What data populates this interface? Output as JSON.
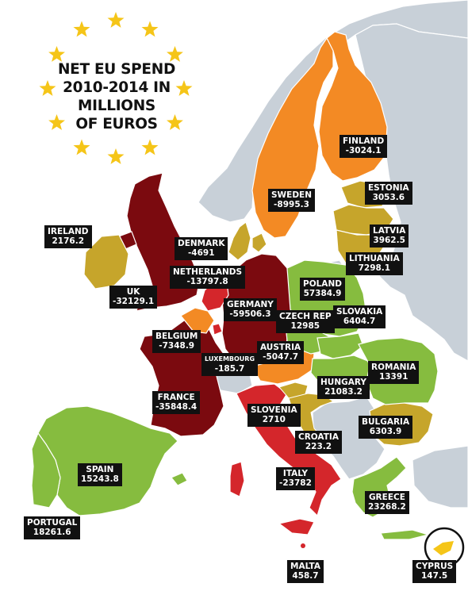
{
  "title_lines": [
    "NET EU SPEND",
    "2010-2014 IN",
    "MILLIONS",
    "OF EUROS"
  ],
  "colors": {
    "sea": "#ffffff",
    "non_eu": "#c8d0d8",
    "dark_red": "#7b0a0f",
    "red": "#d4262b",
    "orange": "#f38a24",
    "olive": "#c6a52b",
    "green": "#86bc3f",
    "star": "#f5c518"
  },
  "countries": [
    {
      "id": "finland",
      "name": "FINLAND",
      "value": "-3024.1"
    },
    {
      "id": "sweden",
      "name": "SWEDEN",
      "value": "-8995.3"
    },
    {
      "id": "estonia",
      "name": "ESTONIA",
      "value": "3053.6"
    },
    {
      "id": "latvia",
      "name": "LATVIA",
      "value": "3962.5"
    },
    {
      "id": "lithuania",
      "name": "LITHUANIA",
      "value": "7298.1"
    },
    {
      "id": "ireland",
      "name": "IRELAND",
      "value": "2176.2"
    },
    {
      "id": "denmark",
      "name": "DENMARK",
      "value": "-4691"
    },
    {
      "id": "netherlands",
      "name": "NETHERLANDS",
      "value": "-13797.8"
    },
    {
      "id": "uk",
      "name": "UK",
      "value": "-32129.1"
    },
    {
      "id": "germany",
      "name": "GERMANY",
      "value": "-59506.3"
    },
    {
      "id": "poland",
      "name": "POLAND",
      "value": "57384.9"
    },
    {
      "id": "czech",
      "name": "CZECH REP",
      "value": "12985"
    },
    {
      "id": "slovakia",
      "name": "SLOVAKIA",
      "value": "6404.7"
    },
    {
      "id": "belgium",
      "name": "BELGIUM",
      "value": "-7348.9"
    },
    {
      "id": "luxembourg",
      "name": "LUXEMBOURG",
      "value": "-185.7"
    },
    {
      "id": "austria",
      "name": "AUSTRIA",
      "value": "-5047.7"
    },
    {
      "id": "romania",
      "name": "ROMANIA",
      "value": "13391"
    },
    {
      "id": "hungary",
      "name": "HUNGARY",
      "value": "21083.2"
    },
    {
      "id": "france",
      "name": "FRANCE",
      "value": "-35848.4"
    },
    {
      "id": "slovenia",
      "name": "SLOVENIA",
      "value": "2710"
    },
    {
      "id": "bulgaria",
      "name": "BULGARIA",
      "value": "6303.9"
    },
    {
      "id": "croatia",
      "name": "CROATIA",
      "value": "223.2"
    },
    {
      "id": "spain",
      "name": "SPAIN",
      "value": "15243.8"
    },
    {
      "id": "italy",
      "name": "ITALY",
      "value": "-23782"
    },
    {
      "id": "greece",
      "name": "GREECE",
      "value": "23268.2"
    },
    {
      "id": "portugal",
      "name": "PORTUGAL",
      "value": "18261.6"
    },
    {
      "id": "malta",
      "name": "MALTA",
      "value": "458.7"
    },
    {
      "id": "cyprus",
      "name": "CYPRUS",
      "value": "147.5"
    }
  ]
}
